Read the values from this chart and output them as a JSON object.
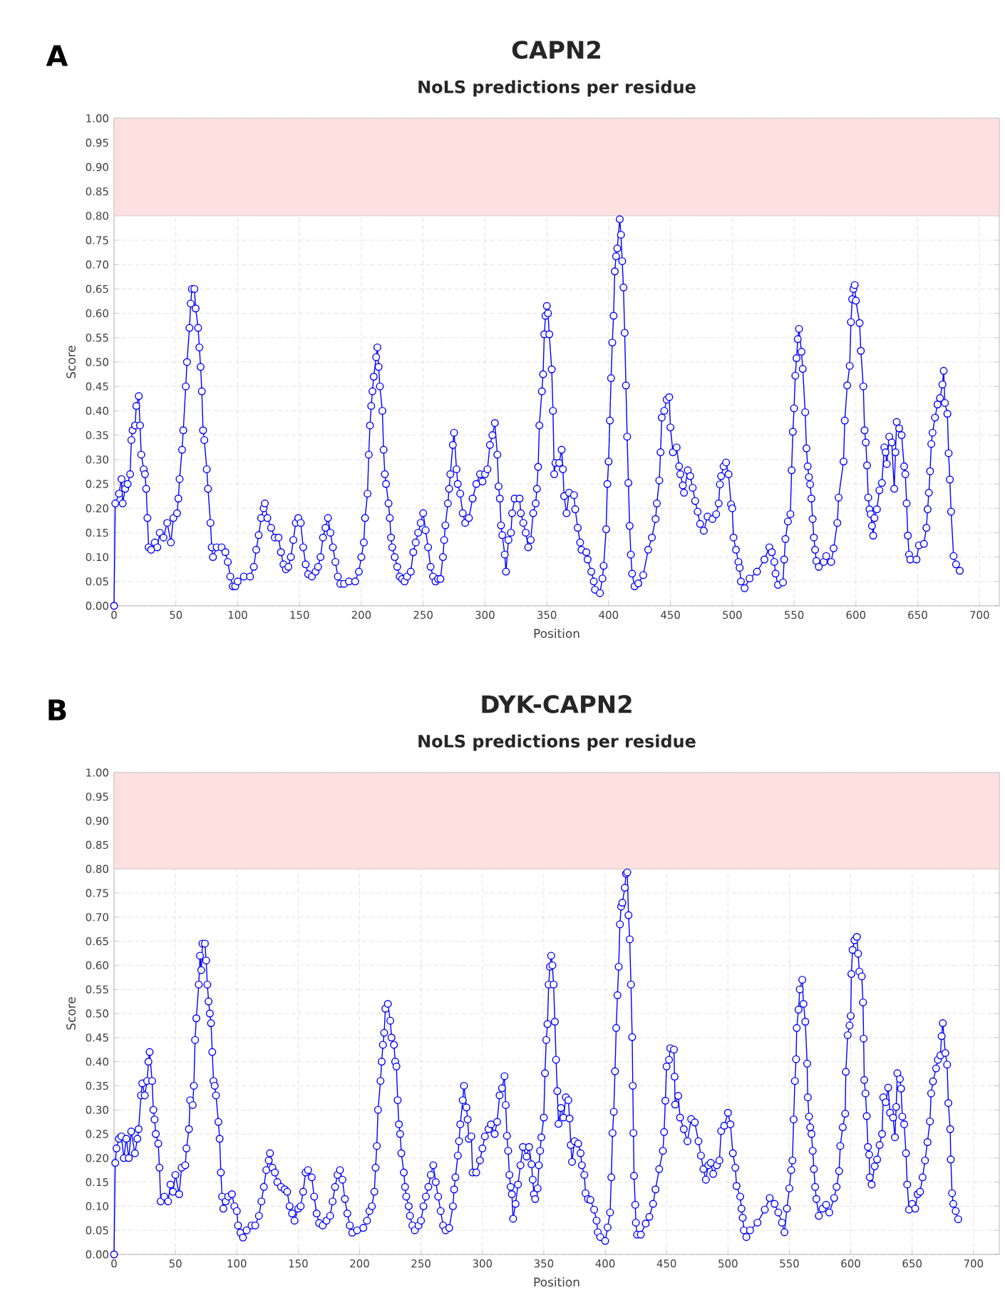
{
  "chart_data": [
    {
      "type": "line",
      "title": "CAPN2",
      "subtitle": "NoLS predictions per residue",
      "xlabel": "Position",
      "ylabel": "Score",
      "annotations": [
        "A"
      ],
      "x": [
        0,
        1,
        4,
        6,
        7,
        9,
        11,
        13,
        14,
        15,
        17,
        18,
        20,
        21,
        22,
        24,
        25,
        26,
        27,
        28,
        30,
        33,
        35,
        37,
        40,
        43,
        46,
        48,
        51,
        52,
        53,
        55,
        56,
        58,
        59,
        61,
        62,
        63,
        65,
        66,
        68,
        69,
        70,
        71,
        72,
        73,
        75,
        76,
        78,
        79,
        80,
        83,
        87,
        90,
        92,
        94,
        96,
        98,
        100,
        105,
        110,
        113,
        115,
        117,
        119,
        121,
        122,
        124,
        127,
        130,
        133,
        135,
        137,
        139,
        141,
        143,
        145,
        147,
        149,
        151,
        153,
        155,
        157,
        160,
        163,
        165,
        167,
        169,
        171,
        173,
        175,
        177,
        179,
        181,
        183,
        186,
        190,
        195,
        198,
        200,
        202,
        203,
        205,
        206,
        207,
        208,
        209,
        210,
        212,
        213,
        214,
        215,
        217,
        218,
        219,
        220,
        222,
        223,
        224,
        225,
        227,
        229,
        231,
        233,
        235,
        237,
        240,
        242,
        244,
        246,
        248,
        250,
        252,
        254,
        256,
        258,
        260,
        262,
        264,
        266,
        267,
        268,
        270,
        271,
        272,
        274,
        275,
        277,
        278,
        280,
        282,
        284,
        287,
        290,
        293,
        296,
        298,
        300,
        302,
        304,
        306,
        308,
        310,
        311,
        312,
        313,
        314,
        316,
        317,
        319,
        321,
        322,
        324,
        328,
        329,
        331,
        333,
        335,
        337,
        339,
        341,
        342,
        343,
        344,
        346,
        347,
        348,
        349,
        350,
        351,
        352,
        354,
        355,
        356,
        357,
        360,
        362,
        363,
        364,
        366,
        368,
        372,
        373,
        375,
        377,
        378,
        382,
        383,
        386,
        388,
        389,
        393,
        395,
        396,
        398,
        399,
        400,
        401,
        402,
        403,
        404,
        405,
        406,
        407,
        409,
        410,
        411,
        412,
        413,
        414,
        415,
        416,
        417,
        418,
        419,
        421,
        424,
        428,
        432,
        435,
        438,
        439,
        441,
        442,
        443,
        445,
        447,
        449,
        450,
        452,
        455,
        457,
        458,
        460,
        461,
        464,
        466,
        468,
        470,
        472,
        474,
        477,
        480,
        484,
        487,
        489,
        490,
        491,
        493,
        495,
        497,
        499,
        500,
        501,
        503,
        505,
        506,
        507,
        510,
        514,
        520,
        526,
        530,
        532,
        534,
        535,
        537,
        541,
        542,
        543,
        545,
        547,
        548,
        549,
        550,
        551,
        552,
        553,
        554,
        556,
        557,
        559,
        560,
        561,
        562,
        563,
        564,
        565,
        566,
        567,
        568,
        570,
        574,
        576,
        580,
        582,
        585,
        586,
        590,
        591,
        593,
        595,
        596,
        597,
        598,
        599,
        600,
        603,
        604,
        606,
        607,
        608,
        609,
        610,
        611,
        612,
        613,
        614,
        615,
        617,
        619,
        621,
        623,
        624,
        625,
        627,
        629,
        631,
        632,
        633,
        635,
        637,
        639,
        640,
        641,
        642,
        643,
        644,
        649,
        651,
        655,
        657,
        658,
        659,
        660,
        661,
        662,
        664,
        666,
        668,
        670,
        671,
        672,
        674,
        675,
        676,
        677,
        679,
        681,
        684
      ],
      "series": [
        {
          "color": "#0000ff",
          "values": [
            0.0,
            0.21,
            0.23,
            0.26,
            0.21,
            0.24,
            0.25,
            0.27,
            0.34,
            0.36,
            0.37,
            0.41,
            0.43,
            0.37,
            0.31,
            0.28,
            0.27,
            0.24,
            0.18,
            0.12,
            0.115,
            0.13,
            0.12,
            0.15,
            0.14,
            0.17,
            0.13,
            0.18,
            0.19,
            0.22,
            0.26,
            0.32,
            0.36,
            0.45,
            0.5,
            0.57,
            0.62,
            0.65,
            0.65,
            0.61,
            0.57,
            0.53,
            0.49,
            0.44,
            0.36,
            0.34,
            0.28,
            0.24,
            0.17,
            0.12,
            0.1,
            0.12,
            0.12,
            0.11,
            0.09,
            0.06,
            0.04,
            0.04,
            0.05,
            0.06,
            0.06,
            0.08,
            0.115,
            0.145,
            0.18,
            0.2,
            0.21,
            0.18,
            0.16,
            0.14,
            0.14,
            0.11,
            0.085,
            0.075,
            0.08,
            0.1,
            0.135,
            0.17,
            0.18,
            0.17,
            0.12,
            0.085,
            0.065,
            0.06,
            0.07,
            0.08,
            0.1,
            0.14,
            0.16,
            0.18,
            0.15,
            0.12,
            0.09,
            0.06,
            0.045,
            0.045,
            0.05,
            0.05,
            0.07,
            0.1,
            0.13,
            0.18,
            0.23,
            0.31,
            0.37,
            0.41,
            0.44,
            0.47,
            0.51,
            0.53,
            0.49,
            0.45,
            0.4,
            0.32,
            0.27,
            0.25,
            0.21,
            0.18,
            0.14,
            0.12,
            0.1,
            0.08,
            0.06,
            0.055,
            0.05,
            0.06,
            0.07,
            0.11,
            0.13,
            0.15,
            0.17,
            0.19,
            0.155,
            0.12,
            0.08,
            0.06,
            0.05,
            0.055,
            0.055,
            0.1,
            0.135,
            0.165,
            0.21,
            0.24,
            0.27,
            0.33,
            0.355,
            0.28,
            0.25,
            0.23,
            0.19,
            0.17,
            0.18,
            0.22,
            0.25,
            0.27,
            0.255,
            0.27,
            0.28,
            0.33,
            0.35,
            0.375,
            0.31,
            0.245,
            0.22,
            0.165,
            0.145,
            0.105,
            0.07,
            0.135,
            0.15,
            0.19,
            0.22,
            0.22,
            0.19,
            0.17,
            0.15,
            0.12,
            0.135,
            0.19,
            0.21,
            0.24,
            0.285,
            0.37,
            0.44,
            0.475,
            0.557,
            0.595,
            0.615,
            0.6,
            0.557,
            0.485,
            0.4,
            0.27,
            0.293,
            0.293,
            0.32,
            0.28,
            0.225,
            0.19,
            0.232,
            0.227,
            0.198,
            0.16,
            0.13,
            0.115,
            0.11,
            0.095,
            0.07,
            0.05,
            0.033,
            0.026,
            0.056,
            0.082,
            0.157,
            0.25,
            0.296,
            0.38,
            0.467,
            0.54,
            0.595,
            0.686,
            0.717,
            0.733,
            0.793,
            0.761,
            0.707,
            0.653,
            0.56,
            0.452,
            0.347,
            0.252,
            0.164,
            0.105,
            0.066,
            0.04,
            0.046,
            0.063,
            0.115,
            0.14,
            0.178,
            0.21,
            0.257,
            0.315,
            0.386,
            0.4,
            0.423,
            0.428,
            0.366,
            0.315,
            0.325,
            0.286,
            0.27,
            0.247,
            0.232,
            0.278,
            0.266,
            0.242,
            0.215,
            0.193,
            0.168,
            0.154,
            0.183,
            0.178,
            0.188,
            0.21,
            0.249,
            0.266,
            0.286,
            0.294,
            0.27,
            0.208,
            0.2,
            0.14,
            0.115,
            0.09,
            0.078,
            0.05,
            0.036,
            0.056,
            0.07,
            0.095,
            0.12,
            0.11,
            0.09,
            0.066,
            0.043,
            0.048,
            0.095,
            0.137,
            0.173,
            0.188,
            0.278,
            0.357,
            0.405,
            0.472,
            0.508,
            0.547,
            0.568,
            0.521,
            0.486,
            0.397,
            0.323,
            0.286,
            0.264,
            0.249,
            0.22,
            0.178,
            0.14,
            0.115,
            0.092,
            0.08,
            0.09,
            0.102,
            0.09,
            0.118,
            0.17,
            0.222,
            0.296,
            0.38,
            0.452,
            0.492,
            0.582,
            0.629,
            0.65,
            0.658,
            0.626,
            0.58,
            0.523,
            0.45,
            0.36,
            0.335,
            0.288,
            0.222,
            0.198,
            0.188,
            0.164,
            0.144,
            0.18,
            0.198,
            0.237,
            0.252,
            0.325,
            0.315,
            0.291,
            0.347,
            0.335,
            0.24,
            0.315,
            0.377,
            0.364,
            0.35,
            0.286,
            0.27,
            0.21,
            0.144,
            0.105,
            0.095,
            0.095,
            0.124,
            0.127,
            0.16,
            0.198,
            0.232,
            0.276,
            0.332,
            0.355,
            0.386,
            0.413,
            0.426,
            0.454,
            0.482,
            0.416,
            0.394,
            0.313,
            0.259,
            0.193,
            0.102,
            0.085,
            0.072
          ]
        }
      ],
      "xlim": [
        0,
        716
      ],
      "ylim": [
        0,
        1
      ],
      "xticks": [
        0,
        50,
        100,
        150,
        200,
        250,
        300,
        350,
        400,
        450,
        500,
        550,
        600,
        650,
        700
      ],
      "yticks": [
        {
          "value": 0,
          "label": "0.00"
        },
        {
          "value": 0.05,
          "label": "0.05"
        },
        {
          "value": 0.1,
          "label": "0.10"
        },
        {
          "value": 0.15,
          "label": "0.15"
        },
        {
          "value": 0.2,
          "label": "0.20"
        },
        {
          "value": 0.25,
          "label": "0.25"
        },
        {
          "value": 0.3,
          "label": "0.30"
        },
        {
          "value": 0.35,
          "label": "0.35"
        },
        {
          "value": 0.4,
          "label": "0.40"
        },
        {
          "value": 0.45,
          "label": "0.45"
        },
        {
          "value": 0.5,
          "label": "0.50"
        },
        {
          "value": 0.55,
          "label": "0.55"
        },
        {
          "value": 0.6,
          "label": "0.60"
        },
        {
          "value": 0.65,
          "label": "0.65"
        },
        {
          "value": 0.7,
          "label": "0.70"
        },
        {
          "value": 0.75,
          "label": "0.75"
        },
        {
          "value": 0.8,
          "label": "0.80"
        },
        {
          "value": 0.85,
          "label": "0.85"
        },
        {
          "value": 0.9,
          "label": "0.90"
        },
        {
          "value": 0.95,
          "label": "0.95"
        },
        {
          "value": 1,
          "label": "1.00"
        }
      ],
      "bands": [
        {
          "axis": "y",
          "from": 0.8,
          "to": 1,
          "color": "#ffe0e0"
        }
      ],
      "grid": true,
      "marker": "circle"
    },
    {
      "type": "line",
      "title": "DYK-CAPN2",
      "subtitle": "NoLS predictions per residue",
      "xlabel": "Position",
      "ylabel": "Score",
      "annotations": [
        "B"
      ],
      "x": [
        0,
        1,
        2,
        4,
        6,
        8,
        10,
        12,
        14,
        17,
        19,
        20,
        22,
        23,
        25,
        27,
        28,
        29,
        31,
        32,
        33,
        34,
        36,
        37,
        38,
        41,
        44,
        46,
        48,
        50,
        53,
        55,
        58,
        59,
        61,
        62,
        64,
        65,
        66,
        67,
        69,
        70,
        71,
        72,
        74,
        75,
        76,
        77,
        78,
        79,
        80,
        81,
        82,
        83,
        85,
        86,
        87,
        88,
        89,
        91,
        93,
        96,
        98,
        100,
        101,
        103,
        105,
        108,
        112,
        115,
        118,
        120,
        122,
        124,
        126,
        127,
        129,
        131,
        133,
        136,
        139,
        141,
        143,
        145,
        147,
        150,
        152,
        154,
        156,
        158,
        161,
        163,
        165,
        167,
        170,
        173,
        176,
        178,
        180,
        182,
        184,
        186,
        188,
        190,
        192,
        194,
        198,
        203,
        206,
        208,
        210,
        212,
        213,
        214,
        215,
        217,
        218,
        219,
        220,
        221,
        223,
        225,
        226,
        228,
        229,
        230,
        231,
        232,
        233,
        234,
        236,
        237,
        238,
        240,
        241,
        243,
        245,
        248,
        250,
        252,
        254,
        256,
        258,
        260,
        262,
        264,
        266,
        268,
        270,
        273,
        276,
        277,
        278,
        280,
        281,
        282,
        284,
        285,
        287,
        288,
        289,
        291,
        292,
        295,
        298,
        300,
        302,
        305,
        307,
        310,
        312,
        314,
        316,
        318,
        319,
        320,
        321,
        322,
        323,
        324,
        325,
        327,
        329,
        331,
        333,
        336,
        338,
        340,
        341,
        342,
        343,
        345,
        346,
        347,
        348,
        350,
        351,
        352,
        353,
        354,
        355,
        356,
        357,
        358,
        359,
        360,
        361,
        362,
        364,
        366,
        368,
        370,
        371,
        372,
        373,
        375,
        378,
        380,
        381,
        383,
        384,
        386,
        388,
        391,
        393,
        394,
        396,
        400,
        402,
        404,
        405,
        406,
        407,
        408,
        409,
        410,
        411,
        412,
        413,
        414,
        416,
        417,
        418,
        419,
        420,
        421,
        422,
        422.5,
        423,
        423.5,
        424.5,
        425,
        426,
        429,
        433,
        436,
        439,
        441,
        444,
        447,
        448,
        449,
        450,
        452,
        453,
        456,
        456.5,
        457,
        459.5,
        461,
        464,
        467,
        470,
        473,
        476,
        478,
        480,
        482,
        484,
        486,
        488,
        491,
        493,
        494.5,
        497,
        500,
        502,
        504,
        506,
        507,
        510,
        511,
        512,
        513,
        515,
        518,
        524,
        530,
        534,
        538,
        541,
        544,
        546,
        548,
        550,
        551.5,
        552.5,
        553.5,
        554.5,
        555.5,
        556,
        557.5,
        558.5,
        560.5,
        561.5,
        563,
        564.5,
        565,
        566,
        567,
        568,
        569,
        570,
        571,
        572,
        574,
        577,
        580,
        582.5,
        586.5,
        588.5,
        590.5,
        591.5,
        593.5,
        595.5,
        596,
        597.5,
        599,
        600,
        600.5,
        601.5,
        603,
        605,
        606,
        607,
        609,
        610,
        610.5,
        611,
        612,
        613,
        614,
        615,
        615.5,
        617,
        619.5,
        621.5,
        623.5,
        625.5,
        626.5,
        628.5,
        630.5,
        632,
        634.5,
        636,
        637,
        638,
        640,
        641,
        642,
        643.5,
        645,
        646,
        647.5,
        650,
        652.5,
        654.5,
        656.5,
        658.5,
        660.5,
        662.5,
        664.5,
        665.5,
        667,
        669.5,
        671,
        673,
        674,
        675,
        677,
        678.5,
        679.5,
        681,
        681.5,
        682.5,
        683.5,
        685.5,
        687.5
      ],
      "series": [
        {
          "color": "#0000ff",
          "values": [
            0.0,
            0.19,
            0.22,
            0.24,
            0.245,
            0.2,
            0.24,
            0.2,
            0.255,
            0.21,
            0.24,
            0.26,
            0.33,
            0.355,
            0.33,
            0.36,
            0.4,
            0.42,
            0.36,
            0.3,
            0.28,
            0.25,
            0.23,
            0.18,
            0.11,
            0.12,
            0.11,
            0.145,
            0.13,
            0.165,
            0.125,
            0.18,
            0.185,
            0.22,
            0.26,
            0.32,
            0.31,
            0.35,
            0.445,
            0.49,
            0.56,
            0.62,
            0.59,
            0.645,
            0.645,
            0.61,
            0.56,
            0.525,
            0.5,
            0.48,
            0.42,
            0.36,
            0.35,
            0.33,
            0.275,
            0.24,
            0.17,
            0.12,
            0.095,
            0.11,
            0.12,
            0.125,
            0.1,
            0.09,
            0.06,
            0.045,
            0.035,
            0.05,
            0.06,
            0.06,
            0.08,
            0.11,
            0.14,
            0.175,
            0.195,
            0.21,
            0.18,
            0.17,
            0.15,
            0.14,
            0.135,
            0.13,
            0.1,
            0.085,
            0.07,
            0.095,
            0.1,
            0.13,
            0.17,
            0.175,
            0.16,
            0.12,
            0.085,
            0.065,
            0.06,
            0.07,
            0.08,
            0.11,
            0.14,
            0.165,
            0.175,
            0.155,
            0.115,
            0.085,
            0.06,
            0.045,
            0.05,
            0.055,
            0.07,
            0.09,
            0.1,
            0.13,
            0.18,
            0.225,
            0.3,
            0.36,
            0.4,
            0.435,
            0.46,
            0.51,
            0.52,
            0.485,
            0.45,
            0.435,
            0.4,
            0.39,
            0.32,
            0.27,
            0.25,
            0.21,
            0.17,
            0.14,
            0.12,
            0.1,
            0.08,
            0.06,
            0.05,
            0.06,
            0.07,
            0.1,
            0.12,
            0.14,
            0.165,
            0.185,
            0.15,
            0.12,
            0.09,
            0.06,
            0.05,
            0.055,
            0.1,
            0.135,
            0.16,
            0.205,
            0.235,
            0.27,
            0.32,
            0.35,
            0.305,
            0.28,
            0.24,
            0.245,
            0.17,
            0.17,
            0.195,
            0.22,
            0.245,
            0.26,
            0.27,
            0.25,
            0.275,
            0.33,
            0.345,
            0.37,
            0.31,
            0.246,
            0.215,
            0.165,
            0.14,
            0.125,
            0.074,
            0.105,
            0.145,
            0.185,
            0.223,
            0.203,
            0.223,
            0.187,
            0.155,
            0.125,
            0.115,
            0.137,
            0.185,
            0.215,
            0.243,
            0.284,
            0.376,
            0.445,
            0.478,
            0.56,
            0.597,
            0.62,
            0.6,
            0.56,
            0.483,
            0.404,
            0.339,
            0.271,
            0.304,
            0.284,
            0.326,
            0.32,
            0.282,
            0.227,
            0.192,
            0.235,
            0.23,
            0.21,
            0.185,
            0.165,
            0.127,
            0.115,
            0.113,
            0.093,
            0.07,
            0.046,
            0.036,
            0.028,
            0.056,
            0.087,
            0.16,
            0.252,
            0.296,
            0.38,
            0.47,
            0.538,
            0.597,
            0.685,
            0.722,
            0.73,
            0.761,
            0.79,
            0.793,
            0.704,
            0.654,
            0.56,
            0.451,
            0.35,
            0.252,
            0.163,
            0.103,
            0.066,
            0.041,
            0.041,
            0.064,
            0.078,
            0.105,
            0.135,
            0.177,
            0.215,
            0.254,
            0.319,
            0.39,
            0.404,
            0.428,
            0.425,
            0.369,
            0.311,
            0.329,
            0.284,
            0.26,
            0.235,
            0.281,
            0.274,
            0.235,
            0.205,
            0.177,
            0.155,
            0.185,
            0.19,
            0.167,
            0.185,
            0.195,
            0.256,
            0.267,
            0.294,
            0.27,
            0.21,
            0.18,
            0.142,
            0.12,
            0.095,
            0.076,
            0.05,
            0.036,
            0.05,
            0.066,
            0.093,
            0.117,
            0.105,
            0.087,
            0.066,
            0.046,
            0.095,
            0.137,
            0.175,
            0.195,
            0.28,
            0.36,
            0.405,
            0.47,
            0.508,
            0.55,
            0.57,
            0.52,
            0.483,
            0.396,
            0.326,
            0.286,
            0.264,
            0.25,
            0.215,
            0.177,
            0.14,
            0.115,
            0.08,
            0.095,
            0.103,
            0.087,
            0.117,
            0.14,
            0.173,
            0.225,
            0.264,
            0.292,
            0.379,
            0.455,
            0.475,
            0.495,
            0.582,
            0.632,
            0.652,
            0.659,
            0.624,
            0.587,
            0.577,
            0.523,
            0.448,
            0.362,
            0.334,
            0.287,
            0.223,
            0.207,
            0.16,
            0.145,
            0.183,
            0.197,
            0.227,
            0.25,
            0.326,
            0.316,
            0.346,
            0.294,
            0.284,
            0.243,
            0.306,
            0.376,
            0.364,
            0.344,
            0.286,
            0.27,
            0.21,
            0.145,
            0.093,
            0.105,
            0.095,
            0.125,
            0.13,
            0.16,
            0.195,
            0.233,
            0.276,
            0.334,
            0.359,
            0.386,
            0.404,
            0.413,
            0.453,
            0.48,
            0.418,
            0.394,
            0.314,
            0.26,
            0.197,
            0.127,
            0.105,
            0.09,
            0.073
          ]
        }
      ],
      "xlim": [
        0,
        721
      ],
      "ylim": [
        0,
        1
      ],
      "xticks": [
        0,
        50,
        100,
        150,
        200,
        250,
        300,
        350,
        400,
        450,
        500,
        550,
        600,
        650,
        700
      ],
      "yticks": [
        {
          "value": 0,
          "label": "0.00"
        },
        {
          "value": 0.05,
          "label": "0.05"
        },
        {
          "value": 0.1,
          "label": "0.10"
        },
        {
          "value": 0.15,
          "label": "0.15"
        },
        {
          "value": 0.2,
          "label": "0.20"
        },
        {
          "value": 0.25,
          "label": "0.25"
        },
        {
          "value": 0.3,
          "label": "0.30"
        },
        {
          "value": 0.35,
          "label": "0.35"
        },
        {
          "value": 0.4,
          "label": "0.40"
        },
        {
          "value": 0.45,
          "label": "0.45"
        },
        {
          "value": 0.5,
          "label": "0.50"
        },
        {
          "value": 0.55,
          "label": "0.55"
        },
        {
          "value": 0.6,
          "label": "0.60"
        },
        {
          "value": 0.65,
          "label": "0.65"
        },
        {
          "value": 0.7,
          "label": "0.70"
        },
        {
          "value": 0.75,
          "label": "0.75"
        },
        {
          "value": 0.8,
          "label": "0.80"
        },
        {
          "value": 0.85,
          "label": "0.85"
        },
        {
          "value": 0.9,
          "label": "0.90"
        },
        {
          "value": 0.95,
          "label": "0.95"
        },
        {
          "value": 1,
          "label": "1.00"
        }
      ],
      "bands": [
        {
          "axis": "y",
          "from": 0.8,
          "to": 1,
          "color": "#ffe0e0"
        }
      ],
      "grid": true,
      "marker": "circle"
    }
  ]
}
